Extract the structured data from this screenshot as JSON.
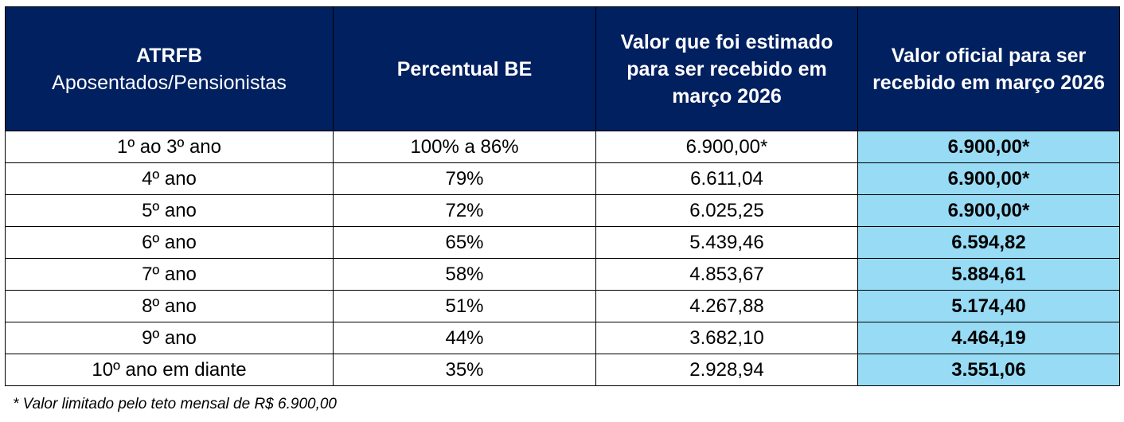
{
  "table": {
    "columns": [
      {
        "title": "ATRFB",
        "subtitle": "Aposentados/Pensionistas"
      },
      {
        "title": "Percentual BE"
      },
      {
        "title": "Valor que foi estimado para ser recebido em março 2026"
      },
      {
        "title": "Valor oficial para ser recebido em março 2026"
      }
    ],
    "rows": [
      [
        "1º ao 3º ano",
        "100% a 86%",
        "6.900,00*",
        "6.900,00*"
      ],
      [
        "4º ano",
        "79%",
        "6.611,04",
        "6.900,00*"
      ],
      [
        "5º ano",
        "72%",
        "6.025,25",
        "6.900,00*"
      ],
      [
        "6º ano",
        "65%",
        "5.439,46",
        "6.594,82"
      ],
      [
        "7º ano",
        "58%",
        "4.853,67",
        "5.884,61"
      ],
      [
        "8º ano",
        "51%",
        "4.267,88",
        "5.174,40"
      ],
      [
        "9º ano",
        "44%",
        "3.682,10",
        "4.464,19"
      ],
      [
        "10º ano em diante",
        "35%",
        "2.928,94",
        "3.551,06"
      ]
    ]
  },
  "footnote": "* Valor limitado pelo teto mensal de R$ 6.900,00"
}
